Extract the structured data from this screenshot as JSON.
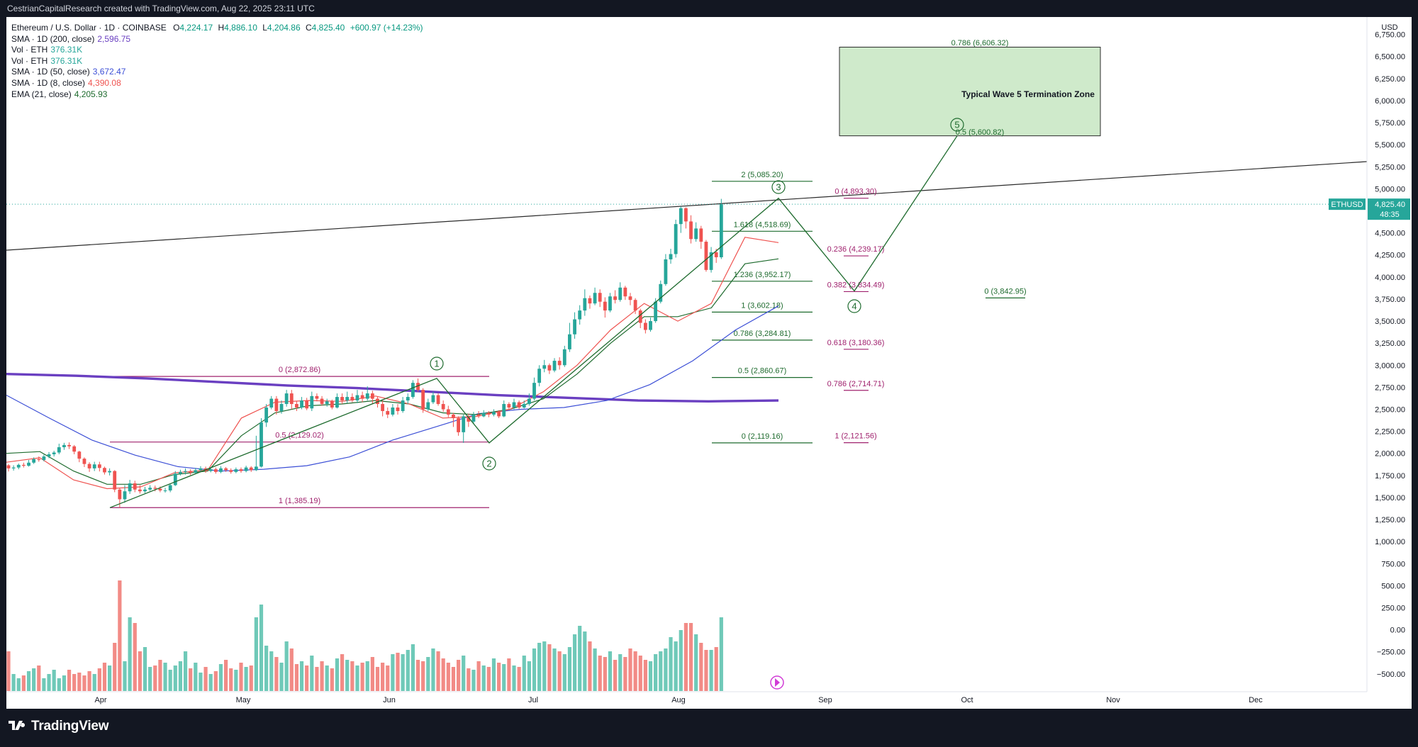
{
  "header": {
    "attribution": "CestrianCapitalResearch created with TradingView.com, Aug 22, 2025 23:11 UTC"
  },
  "legend": {
    "symbol": "Ethereum / U.S. Dollar · 1D · COINBASE",
    "ohlc": [
      {
        "k": "O",
        "v": "4,224.17"
      },
      {
        "k": "H",
        "v": "4,886.10"
      },
      {
        "k": "L",
        "v": "4,204.86"
      },
      {
        "k": "C",
        "v": "4,825.40"
      }
    ],
    "change": "+600.97 (+14.23%)",
    "indicators": [
      {
        "name": "SMA · 1D (200, close)",
        "value": "2,596.75",
        "color": "#6a3fc1"
      },
      {
        "name": "Vol · ETH",
        "value": "376.31K",
        "color": "#26a69a"
      },
      {
        "name": "Vol · ETH",
        "value": "376.31K",
        "color": "#26a69a"
      },
      {
        "name": "SMA · 1D (50, close)",
        "value": "3,672.47",
        "color": "#3c4fd6"
      },
      {
        "name": "SMA · 1D (8, close)",
        "value": "4,390.08",
        "color": "#ef5350"
      },
      {
        "name": "EMA (21, close)",
        "value": "4,205.93",
        "color": "#1e6b2e"
      }
    ]
  },
  "chart_data": {
    "type": "candlestick",
    "symbol": "ETHUSD",
    "currency": "USD",
    "x_axis_labels": [
      "Apr",
      "May",
      "Jun",
      "Jul",
      "Aug",
      "Sep",
      "Oct",
      "Nov",
      "Dec"
    ],
    "y_ticks": [
      "6,750.00",
      "6,500.00",
      "6,250.00",
      "6,000.00",
      "5,750.00",
      "5,500.00",
      "5,250.00",
      "5,000.00",
      "4,750.00",
      "4,500.00",
      "4,250.00",
      "4,000.00",
      "3,750.00",
      "3,500.00",
      "3,250.00",
      "3,000.00",
      "2,750.00",
      "2,500.00",
      "2,250.00",
      "2,000.00",
      "1,750.00",
      "1,500.00",
      "1,250.00",
      "1,000.00",
      "750.00",
      "500.00",
      "250.00",
      "0.00",
      "−250.00",
      "−500.00"
    ],
    "price_label": {
      "symbol": "ETHUSD",
      "price": "4,825.40",
      "countdown": "48:35",
      "value": 4825.4
    },
    "ohlc_series": [
      [
        1865,
        1830,
        1880,
        1795
      ],
      [
        1830,
        1840,
        1865,
        1805
      ],
      [
        1840,
        1870,
        1885,
        1820
      ],
      [
        1870,
        1860,
        1895,
        1840
      ],
      [
        1860,
        1895,
        1925,
        1850
      ],
      [
        1895,
        1935,
        1955,
        1880
      ],
      [
        1935,
        1925,
        1965,
        1905
      ],
      [
        1925,
        1965,
        1985,
        1910
      ],
      [
        1965,
        1990,
        2015,
        1945
      ],
      [
        1990,
        2010,
        2030,
        1965
      ],
      [
        2010,
        2070,
        2110,
        1990
      ],
      [
        2070,
        2095,
        2120,
        2040
      ],
      [
        2095,
        2080,
        2125,
        2050
      ],
      [
        2080,
        2020,
        2095,
        1990
      ],
      [
        2020,
        1940,
        2030,
        1900
      ],
      [
        1940,
        1880,
        1955,
        1845
      ],
      [
        1880,
        1830,
        1900,
        1790
      ],
      [
        1830,
        1875,
        1905,
        1800
      ],
      [
        1875,
        1835,
        1905,
        1795
      ],
      [
        1835,
        1785,
        1850,
        1760
      ],
      [
        1785,
        1800,
        1830,
        1750
      ],
      [
        1800,
        1590,
        1810,
        1560
      ],
      [
        1590,
        1480,
        1610,
        1385
      ],
      [
        1480,
        1570,
        1640,
        1440
      ],
      [
        1570,
        1660,
        1700,
        1540
      ],
      [
        1660,
        1590,
        1690,
        1560
      ],
      [
        1590,
        1570,
        1640,
        1545
      ],
      [
        1570,
        1590,
        1620,
        1550
      ],
      [
        1590,
        1610,
        1640,
        1575
      ],
      [
        1610,
        1600,
        1635,
        1570
      ],
      [
        1600,
        1580,
        1625,
        1560
      ],
      [
        1580,
        1580,
        1610,
        1555
      ],
      [
        1580,
        1640,
        1660,
        1560
      ],
      [
        1640,
        1770,
        1800,
        1630
      ],
      [
        1770,
        1790,
        1815,
        1750
      ],
      [
        1790,
        1800,
        1830,
        1760
      ],
      [
        1800,
        1780,
        1820,
        1755
      ],
      [
        1780,
        1810,
        1835,
        1770
      ],
      [
        1810,
        1830,
        1855,
        1790
      ],
      [
        1830,
        1800,
        1850,
        1780
      ],
      [
        1800,
        1820,
        1845,
        1785
      ],
      [
        1820,
        1790,
        1840,
        1770
      ],
      [
        1790,
        1830,
        1855,
        1775
      ],
      [
        1830,
        1810,
        1845,
        1790
      ],
      [
        1810,
        1790,
        1830,
        1770
      ],
      [
        1790,
        1820,
        1840,
        1775
      ],
      [
        1820,
        1800,
        1840,
        1780
      ],
      [
        1800,
        1840,
        1860,
        1785
      ],
      [
        1840,
        1810,
        1855,
        1790
      ],
      [
        1810,
        1850,
        2200,
        1800
      ],
      [
        1850,
        2350,
        2400,
        1840
      ],
      [
        2350,
        2520,
        2560,
        2300
      ],
      [
        2520,
        2620,
        2650,
        2500
      ],
      [
        2620,
        2480,
        2650,
        2440
      ],
      [
        2480,
        2560,
        2600,
        2450
      ],
      [
        2560,
        2680,
        2720,
        2530
      ],
      [
        2680,
        2560,
        2720,
        2500
      ],
      [
        2560,
        2520,
        2590,
        2480
      ],
      [
        2520,
        2600,
        2640,
        2500
      ],
      [
        2600,
        2510,
        2630,
        2490
      ],
      [
        2510,
        2650,
        2700,
        2480
      ],
      [
        2650,
        2620,
        2680,
        2590
      ],
      [
        2620,
        2560,
        2650,
        2540
      ],
      [
        2560,
        2590,
        2620,
        2530
      ],
      [
        2590,
        2520,
        2610,
        2500
      ],
      [
        2520,
        2640,
        2680,
        2510
      ],
      [
        2640,
        2600,
        2680,
        2560
      ],
      [
        2600,
        2640,
        2700,
        2570
      ],
      [
        2640,
        2600,
        2680,
        2580
      ],
      [
        2600,
        2660,
        2720,
        2570
      ],
      [
        2660,
        2620,
        2700,
        2580
      ],
      [
        2620,
        2680,
        2760,
        2600
      ],
      [
        2680,
        2620,
        2710,
        2560
      ],
      [
        2620,
        2560,
        2640,
        2520
      ],
      [
        2560,
        2480,
        2600,
        2420
      ],
      [
        2480,
        2440,
        2520,
        2400
      ],
      [
        2440,
        2520,
        2560,
        2420
      ],
      [
        2520,
        2480,
        2560,
        2440
      ],
      [
        2480,
        2600,
        2640,
        2460
      ],
      [
        2600,
        2640,
        2680,
        2560
      ],
      [
        2640,
        2800,
        2830,
        2620
      ],
      [
        2800,
        2720,
        2850,
        2700
      ],
      [
        2720,
        2500,
        2740,
        2460
      ],
      [
        2500,
        2580,
        2620,
        2480
      ],
      [
        2580,
        2660,
        2700,
        2560
      ],
      [
        2660,
        2560,
        2680,
        2540
      ],
      [
        2560,
        2500,
        2600,
        2470
      ],
      [
        2500,
        2440,
        2540,
        2410
      ],
      [
        2440,
        2400,
        2460,
        2300
      ],
      [
        2400,
        2240,
        2420,
        2200
      ],
      [
        2240,
        2420,
        2440,
        2119
      ],
      [
        2420,
        2360,
        2450,
        2300
      ],
      [
        2360,
        2440,
        2470,
        2340
      ],
      [
        2440,
        2420,
        2480,
        2400
      ],
      [
        2420,
        2460,
        2490,
        2410
      ],
      [
        2460,
        2440,
        2480,
        2410
      ],
      [
        2440,
        2470,
        2500,
        2420
      ],
      [
        2470,
        2420,
        2490,
        2400
      ],
      [
        2420,
        2560,
        2600,
        2410
      ],
      [
        2560,
        2520,
        2580,
        2500
      ],
      [
        2520,
        2580,
        2620,
        2500
      ],
      [
        2580,
        2520,
        2600,
        2500
      ],
      [
        2520,
        2560,
        2600,
        2510
      ],
      [
        2560,
        2620,
        2680,
        2540
      ],
      [
        2620,
        2800,
        2860,
        2600
      ],
      [
        2800,
        2960,
        3000,
        2760
      ],
      [
        2960,
        3000,
        3060,
        2920
      ],
      [
        3000,
        2940,
        3020,
        2900
      ],
      [
        2940,
        3050,
        3080,
        2920
      ],
      [
        3050,
        3000,
        3090,
        2950
      ],
      [
        3000,
        3180,
        3220,
        2980
      ],
      [
        3180,
        3350,
        3480,
        3150
      ],
      [
        3350,
        3520,
        3600,
        3300
      ],
      [
        3520,
        3620,
        3680,
        3460
      ],
      [
        3620,
        3760,
        3860,
        3560
      ],
      [
        3760,
        3700,
        3790,
        3640
      ],
      [
        3700,
        3820,
        3880,
        3680
      ],
      [
        3820,
        3720,
        3860,
        3660
      ],
      [
        3720,
        3620,
        3770,
        3540
      ],
      [
        3620,
        3780,
        3820,
        3600
      ],
      [
        3780,
        3740,
        3850,
        3700
      ],
      [
        3740,
        3880,
        3940,
        3720
      ],
      [
        3880,
        3780,
        3900,
        3740
      ],
      [
        3780,
        3740,
        3820,
        3680
      ],
      [
        3740,
        3620,
        3760,
        3580
      ],
      [
        3620,
        3480,
        3640,
        3420
      ],
      [
        3480,
        3400,
        3520,
        3360
      ],
      [
        3400,
        3500,
        3540,
        3380
      ],
      [
        3500,
        3720,
        3760,
        3480
      ],
      [
        3720,
        3920,
        3960,
        3700
      ],
      [
        3920,
        4200,
        4260,
        3900
      ],
      [
        4200,
        4260,
        4320,
        4150
      ],
      [
        4260,
        4600,
        4650,
        4220
      ],
      [
        4600,
        4780,
        4800,
        4500
      ],
      [
        4780,
        4630,
        4790,
        4550
      ],
      [
        4630,
        4430,
        4700,
        4380
      ],
      [
        4430,
        4550,
        4620,
        4400
      ],
      [
        4550,
        4400,
        4580,
        4320
      ],
      [
        4400,
        4080,
        4420,
        4060
      ],
      [
        4080,
        4280,
        4340,
        4050
      ],
      [
        4280,
        4224,
        4320,
        4160
      ],
      [
        4224,
        4825,
        4886,
        4204
      ]
    ],
    "volume_series": [
      280,
      120,
      90,
      110,
      140,
      160,
      180,
      90,
      120,
      150,
      90,
      110,
      150,
      120,
      130,
      110,
      140,
      120,
      160,
      200,
      180,
      340,
      780,
      210,
      520,
      480,
      280,
      310,
      170,
      180,
      220,
      200,
      150,
      180,
      210,
      280,
      160,
      200,
      130,
      170,
      120,
      140,
      190,
      220,
      160,
      150,
      200,
      170,
      180,
      520,
      610,
      320,
      280,
      240,
      200,
      350,
      300,
      190,
      210,
      180,
      250,
      170,
      210,
      180,
      160,
      230,
      260,
      220,
      210,
      180,
      200,
      210,
      240,
      170,
      200,
      180,
      260,
      270,
      260,
      290,
      330,
      220,
      210,
      240,
      300,
      280,
      230,
      200,
      170,
      220,
      250,
      160,
      150,
      210,
      180,
      170,
      230,
      200,
      190,
      230,
      180,
      170,
      250,
      210,
      300,
      340,
      350,
      330,
      300,
      280,
      260,
      310,
      400,
      460,
      420,
      350,
      300,
      250,
      240,
      280,
      220,
      260,
      240,
      300,
      280,
      250,
      220,
      210,
      260,
      280,
      300,
      380,
      350,
      430,
      480,
      480,
      400,
      340,
      290,
      290,
      310,
      520
    ],
    "fib_levels": {
      "left_retracement": [
        {
          "label": "0 (2,872.86)",
          "value": 2872.86
        },
        {
          "label": "0.5 (2,129.02)",
          "value": 2129.02
        },
        {
          "label": "1 (1,385.19)",
          "value": 1385.19
        }
      ],
      "extension": [
        {
          "label": "2 (5,085.20)",
          "value": 5085.2
        },
        {
          "label": "1.618 (4,518.69)",
          "value": 4518.69
        },
        {
          "label": "1.236 (3,952.17)",
          "value": 3952.17
        },
        {
          "label": "1 (3,602.18)",
          "value": 3602.18
        },
        {
          "label": "0.786 (3,284.81)",
          "value": 3284.81
        },
        {
          "label": "0.5 (2,860.67)",
          "value": 2860.67
        },
        {
          "label": "0 (2,119.16)",
          "value": 2119.16
        }
      ],
      "wave4_retracement": [
        {
          "label": "0 (4,893.30)",
          "value": 4893.3
        },
        {
          "label": "0.236 (4,239.17)",
          "value": 4239.17
        },
        {
          "label": "0.382 (3,834.49)",
          "value": 3834.49
        },
        {
          "label": "0.618 (3,180.36)",
          "value": 3180.36
        },
        {
          "label": "0.786 (2,714.71)",
          "value": 2714.71
        },
        {
          "label": "1 (2,121.56)",
          "value": 2121.56
        }
      ],
      "wave5_target": [
        {
          "label": "0.786 (6,606.32)",
          "value": 6606.32
        },
        {
          "label": "0.5 (5,600.82)",
          "value": 5600.82
        },
        {
          "label": "0 (3,842.95)",
          "value": 3842.95
        }
      ]
    },
    "target_zone_label": "Typical Wave 5 Termination Zone",
    "wave_labels": [
      "1",
      "2",
      "3",
      "4",
      "5"
    ],
    "wave_points": [
      {
        "label": "1",
        "value": 2850
      },
      {
        "label": "2",
        "value": 2119
      },
      {
        "label": "3",
        "value": 4893
      },
      {
        "label": "4",
        "value": 3842
      },
      {
        "label": "5",
        "value": 5600
      }
    ],
    "moving_averages": [
      {
        "name": "SMA 200",
        "color": "#6a3fc1",
        "points": [
          2900,
          2880,
          2850,
          2810,
          2770,
          2740,
          2700,
          2660,
          2630,
          2600,
          2590,
          2600
        ]
      },
      {
        "name": "SMA 50",
        "color": "#3c4fd6",
        "points": [
          2660,
          2400,
          2150,
          1980,
          1850,
          1800,
          1820,
          1860,
          1960,
          2150,
          2300,
          2450,
          2500,
          2520,
          2600,
          2780,
          3050,
          3400,
          3672
        ]
      },
      {
        "name": "SMA 8",
        "color": "#ef5350",
        "points": [
          1900,
          1950,
          1700,
          1600,
          1620,
          1780,
          1810,
          2400,
          2580,
          2600,
          2590,
          2650,
          2560,
          2400,
          2420,
          2500,
          2700,
          3000,
          3400,
          3700,
          3500,
          3700,
          4450,
          4390
        ]
      },
      {
        "name": "EMA 21",
        "color": "#1e6b2e",
        "points": [
          2000,
          2020,
          1800,
          1650,
          1650,
          1760,
          1800,
          2200,
          2460,
          2540,
          2560,
          2600,
          2560,
          2460,
          2440,
          2500,
          2620,
          2900,
          3250,
          3550,
          3550,
          3650,
          4150,
          4206
        ]
      }
    ]
  }
}
